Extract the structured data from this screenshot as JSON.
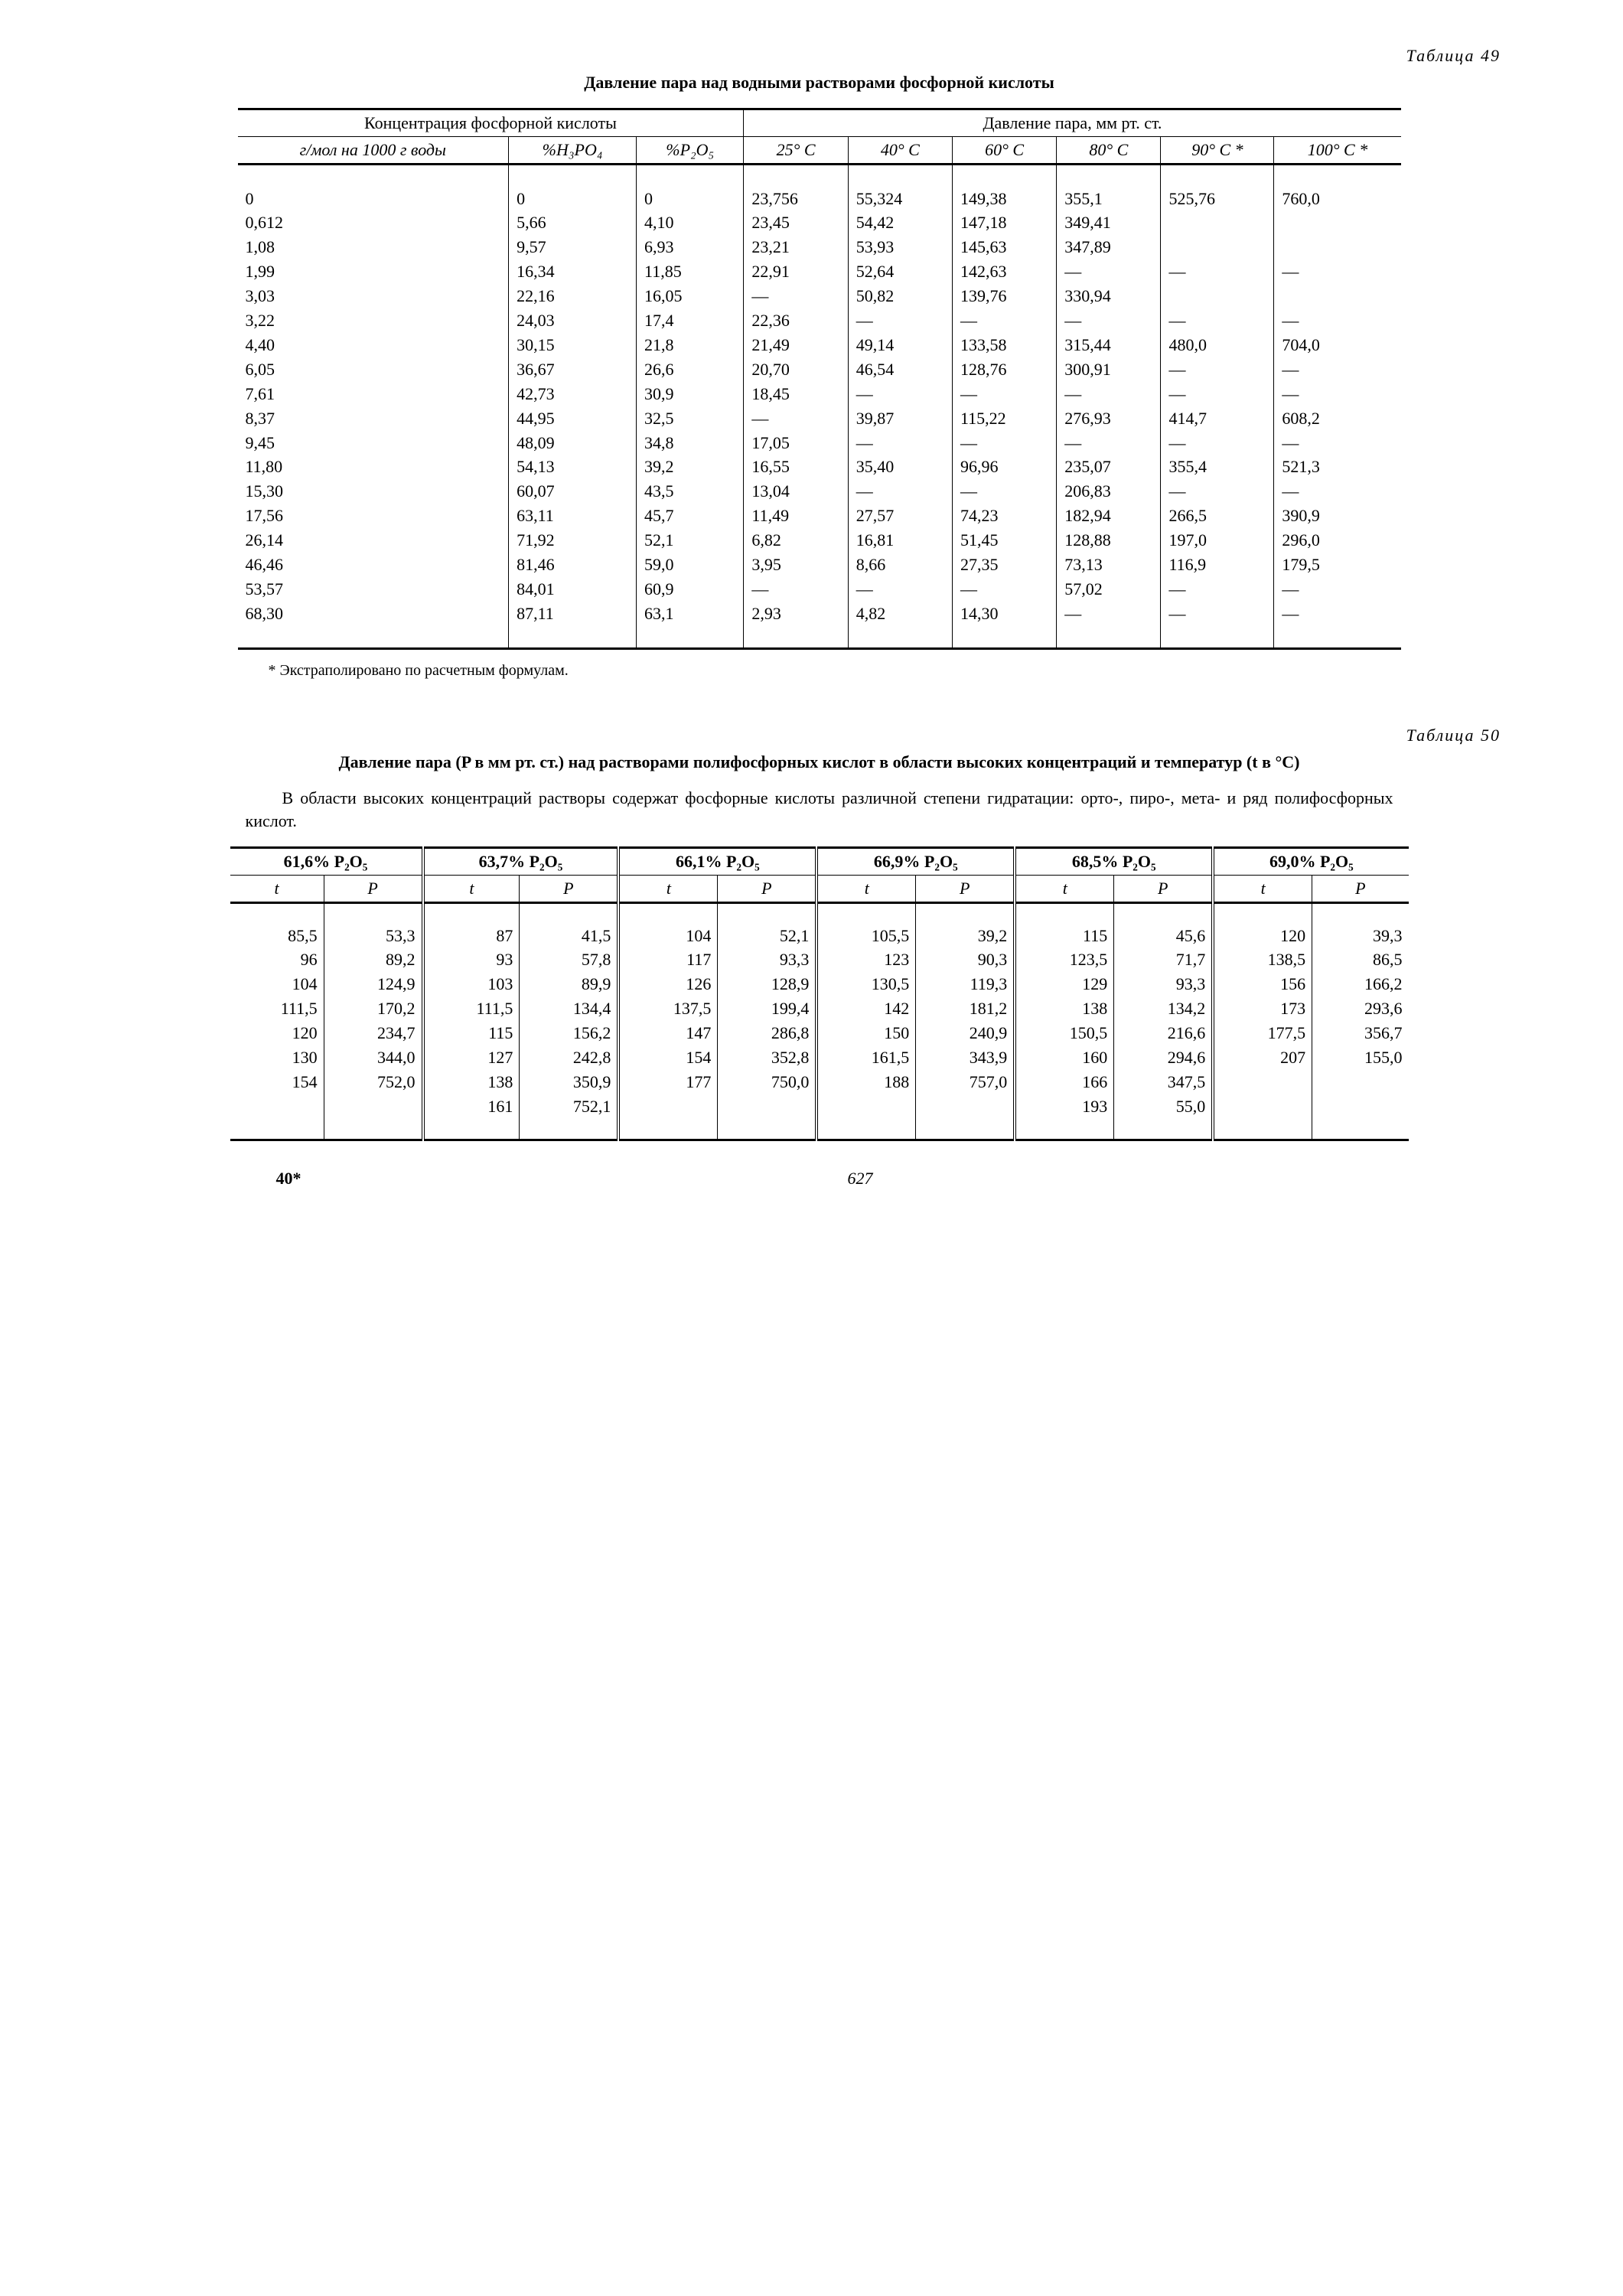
{
  "page": {
    "signature": "40*",
    "number": "627"
  },
  "t49": {
    "label": "Таблица 49",
    "caption": "Давление пара над водными растворами фосфорной кислоты",
    "header_group_left": "Концентрация фосфорной кислоты",
    "header_group_right": "Давление пара, мм рт. ст.",
    "cols": {
      "c1": "г/мол на 1000 г воды",
      "c2": "%H₃PO₄",
      "c3": "%P₂O₅",
      "c4": "25° C",
      "c5": "40° C",
      "c6": "60° C",
      "c7": "80° C",
      "c8": "90° C *",
      "c9": "100° C *"
    },
    "data": {
      "c1": "0\n0,612\n1,08\n1,99\n3,03\n3,22\n4,40\n6,05\n7,61\n8,37\n9,45\n11,80\n15,30\n17,56\n26,14\n46,46\n53,57\n68,30",
      "c2": "0\n5,66\n9,57\n16,34\n22,16\n24,03\n30,15\n36,67\n42,73\n44,95\n48,09\n54,13\n60,07\n63,11\n71,92\n81,46\n84,01\n87,11",
      "c3": "0\n4,10\n6,93\n11,85\n16,05\n17,4\n21,8\n26,6\n30,9\n32,5\n34,8\n39,2\n43,5\n45,7\n52,1\n59,0\n60,9\n63,1",
      "c4": "23,756\n23,45\n23,21\n22,91\n—\n22,36\n21,49\n20,70\n18,45\n—\n17,05\n16,55\n13,04\n11,49\n6,82\n3,95\n—\n2,93",
      "c5": "55,324\n54,42\n53,93\n52,64\n50,82\n—\n49,14\n46,54\n—\n39,87\n—\n35,40\n—\n27,57\n16,81\n8,66\n—\n4,82",
      "c6": "149,38\n147,18\n145,63\n142,63\n139,76\n—\n133,58\n128,76\n—\n115,22\n—\n96,96\n—\n74,23\n51,45\n27,35\n—\n14,30",
      "c7": "355,1\n349,41\n347,89\n—\n330,94\n—\n315,44\n300,91\n—\n276,93\n—\n235,07\n206,83\n182,94\n128,88\n73,13\n57,02\n—",
      "c8": "525,76\n\n\n—\n\n—\n480,0\n—\n—\n414,7\n—\n355,4\n—\n266,5\n197,0\n116,9\n—\n—",
      "c9": "760,0\n\n\n—\n\n—\n704,0\n—\n—\n608,2\n—\n521,3\n—\n390,9\n296,0\n179,5\n—\n—"
    },
    "footnote": "* Экстраполировано по расчетным формулам."
  },
  "t50": {
    "label": "Таблица 50",
    "caption": "Давление пара (P в мм рт. ст.) над растворами полифосфорных кислот в области высоких концентраций и температур (t в °C)",
    "intro": "В области высоких концентраций растворы содержат фосфорные кислоты раз­личной степени гидратации: орто-, пиро-, мета- и ряд полифосфорных кислот.",
    "groups": [
      "61,6% P₂O₅",
      "63,7% P₂O₅",
      "66,1% P₂O₅",
      "66,9% P₂O₅",
      "68,5% P₂O₅",
      "69,0% P₂O₅"
    ],
    "sub_t": "t",
    "sub_P": "P",
    "data": {
      "g0": {
        "t": "85,5\n96\n104\n111,5\n120\n130\n154",
        "P": "53,3\n89,2\n124,9\n170,2\n234,7\n344,0\n752,0"
      },
      "g1": {
        "t": "87\n93\n103\n111,5\n115\n127\n138\n161",
        "P": "41,5\n57,8\n89,9\n134,4\n156,2\n242,8\n350,9\n752,1"
      },
      "g2": {
        "t": "104\n117\n126\n137,5\n147\n154\n177",
        "P": "52,1\n93,3\n128,9\n199,4\n286,8\n352,8\n750,0"
      },
      "g3": {
        "t": "105,5\n123\n130,5\n142\n150\n161,5\n188",
        "P": "39,2\n90,3\n119,3\n181,2\n240,9\n343,9\n757,0"
      },
      "g4": {
        "t": "115\n123,5\n129\n138\n150,5\n160\n166\n193",
        "P": "45,6\n71,7\n93,3\n134,2\n216,6\n294,6\n347,5\n55,0"
      },
      "g5": {
        "t": "120\n138,5\n156\n173\n177,5\n207",
        "P": "39,3\n86,5\n166,2\n293,6\n356,7\n155,0"
      }
    }
  }
}
